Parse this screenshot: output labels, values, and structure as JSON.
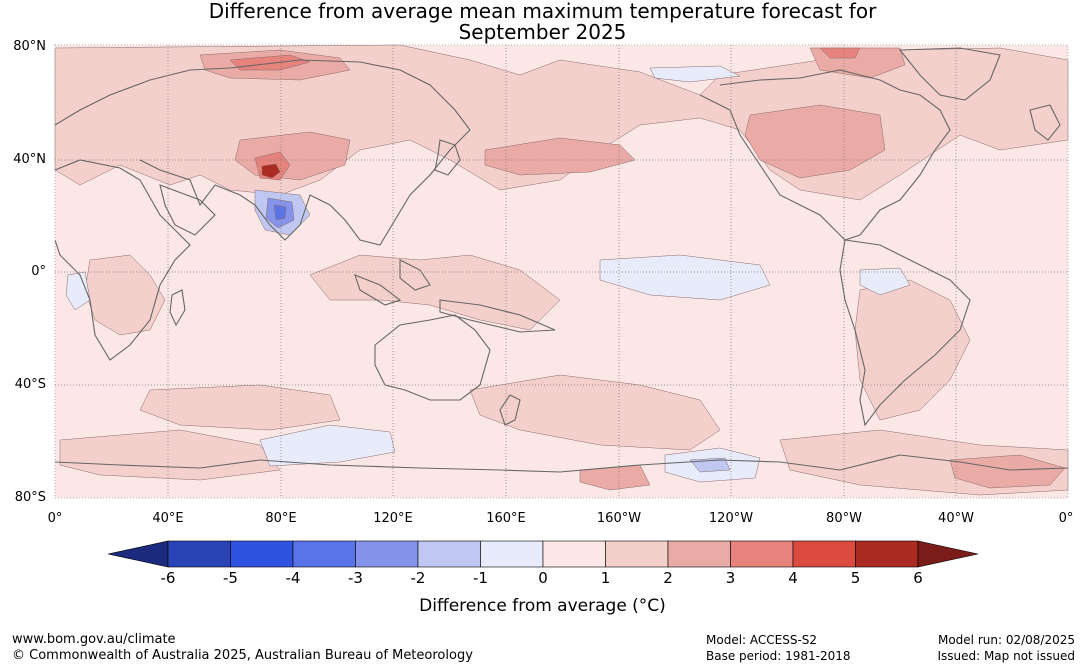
{
  "title": {
    "line1": "Difference from average mean maximum temperature forecast for",
    "line2": "September 2025"
  },
  "map": {
    "lat_labels": [
      "80°N",
      "40°N",
      "0°",
      "40°S",
      "80°S"
    ],
    "lon_labels": [
      "0°",
      "40°E",
      "80°E",
      "120°E",
      "160°E",
      "160°W",
      "120°W",
      "80°W",
      "40°W",
      "0°"
    ],
    "land_color": "#fbe8e6",
    "coast_color": "#666666"
  },
  "colorbar": {
    "ticks": [
      "-6",
      "-5",
      "-4",
      "-3",
      "-2",
      "-1",
      "0",
      "1",
      "2",
      "3",
      "4",
      "5",
      "6"
    ],
    "colors": [
      "#1c2a7d",
      "#2a44b5",
      "#3052e0",
      "#5a73e8",
      "#8594ea",
      "#c0c8f2",
      "#e8ebfa",
      "#fbe8e6",
      "#f4d0cd",
      "#eaaaa5",
      "#e5837c",
      "#db4a3e",
      "#ab2b23",
      "#7a1c18"
    ],
    "label": "Difference from average (°C)"
  },
  "footer": {
    "website": "www.bom.gov.au/climate",
    "copyright": "© Commonwealth of Australia 2025, Australian Bureau of Meteorology",
    "model": "Model: ACCESS-S2",
    "base_period": "Base period: 1981-2018",
    "model_run": "Model run: 02/08/2025",
    "issued": "Issued: Map not issued"
  }
}
